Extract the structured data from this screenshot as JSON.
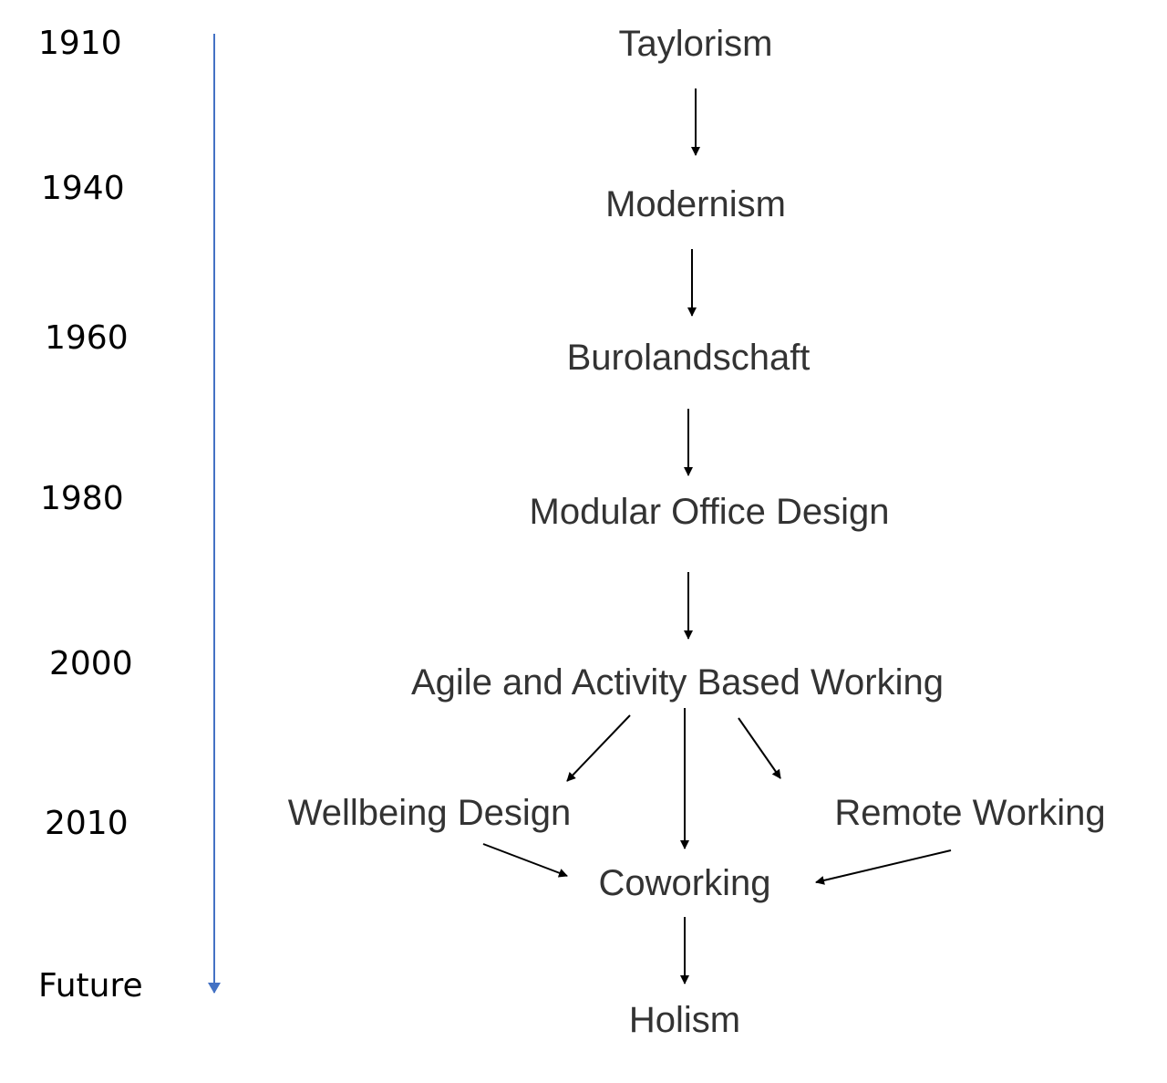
{
  "timeline": {
    "color": "#4472C4",
    "labels": [
      "1910",
      "1940",
      "1960",
      "1980",
      "2000",
      "2010",
      "Future"
    ]
  },
  "nodes": {
    "taylorism": "Taylorism",
    "modernism": "Modernism",
    "burolandschaft": "Burolandschaft",
    "modular": "Modular Office Design",
    "agile": "Agile and Activity Based Working",
    "wellbeing": "Wellbeing Design",
    "remote": "Remote Working",
    "coworking": "Coworking",
    "holism": "Holism"
  },
  "edges": [
    [
      "Taylorism",
      "Modernism"
    ],
    [
      "Modernism",
      "Burolandschaft"
    ],
    [
      "Burolandschaft",
      "Modular Office Design"
    ],
    [
      "Modular Office Design",
      "Agile and Activity Based Working"
    ],
    [
      "Agile and Activity Based Working",
      "Wellbeing Design"
    ],
    [
      "Agile and Activity Based Working",
      "Coworking"
    ],
    [
      "Agile and Activity Based Working",
      "Remote Working"
    ],
    [
      "Wellbeing Design",
      "Coworking"
    ],
    [
      "Remote Working",
      "Coworking"
    ],
    [
      "Coworking",
      "Holism"
    ]
  ],
  "colors": {
    "edge": "#000000",
    "node_text": "#333333",
    "year_text": "#000000"
  }
}
